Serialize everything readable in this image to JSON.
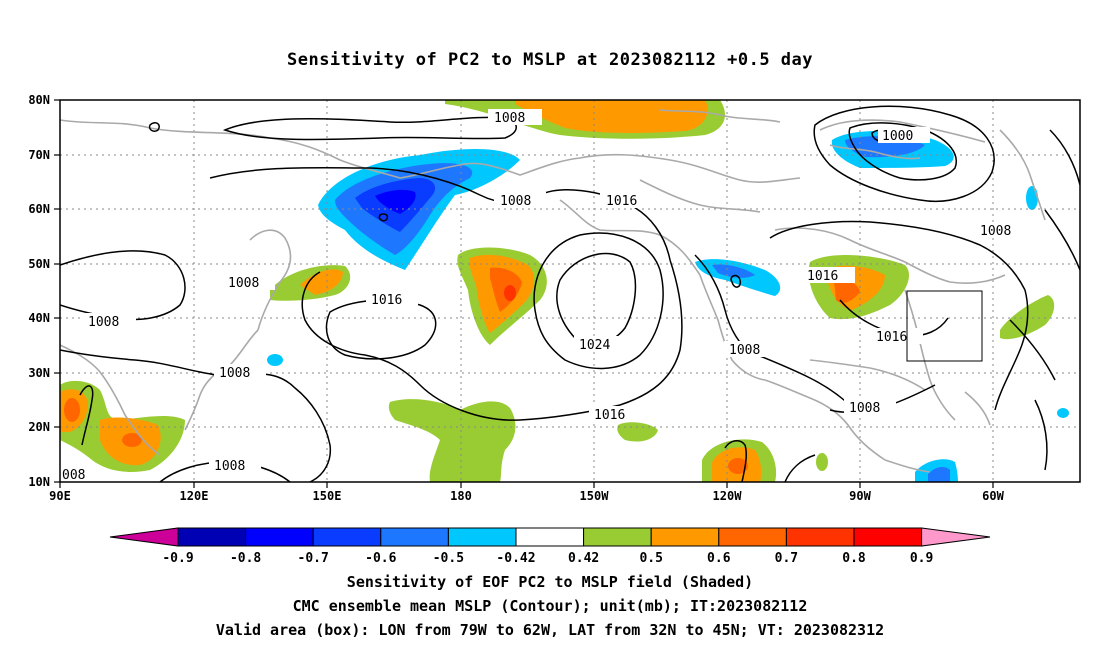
{
  "title": "Sensitivity of PC2 to MSLP at 2023082112 +0.5 day",
  "map": {
    "lat_ticks": [
      "80N",
      "70N",
      "60N",
      "50N",
      "40N",
      "30N",
      "20N",
      "10N"
    ],
    "lon_ticks": [
      "90E",
      "120E",
      "150E",
      "180",
      "150W",
      "120W",
      "90W",
      "60W"
    ],
    "contour_levels": [
      "1000",
      "1008",
      "1016",
      "1024"
    ],
    "contour_labels": [
      "1008",
      "1008",
      "1016",
      "1000",
      "1008",
      "1008",
      "1008",
      "1016",
      "1016",
      "1024",
      "1016",
      "1008",
      "1016",
      "1008",
      "1008",
      "1008",
      "008"
    ],
    "valid_box": {
      "lon_from": "79W",
      "lon_to": "62W",
      "lat_from": "32N",
      "lat_to": "45N"
    },
    "colors": {
      "land": "#a9a9a9",
      "contour": "#000000",
      "grid": "#888888"
    }
  },
  "colorbar": {
    "labels": [
      "-0.9",
      "-0.8",
      "-0.7",
      "-0.6",
      "-0.5",
      "-0.42",
      "0.42",
      "0.5",
      "0.6",
      "0.7",
      "0.8",
      "0.9"
    ],
    "colors": [
      "#cc0099",
      "#0000b4",
      "#0000ff",
      "#0a3cff",
      "#1e78ff",
      "#00c8ff",
      "#ffffff",
      "#99cc33",
      "#ff9900",
      "#ff6600",
      "#ff3300",
      "#ff0000",
      "#ff99cc"
    ]
  },
  "footer": {
    "line1": "Sensitivity of EOF PC2 to MSLP field (Shaded)",
    "line2": "CMC ensemble mean MSLP (Contour); unit(mb); IT:2023082112",
    "line3": "Valid area (box): LON from 79W to 62W, LAT from 32N to 45N; VT: 2023082312"
  }
}
